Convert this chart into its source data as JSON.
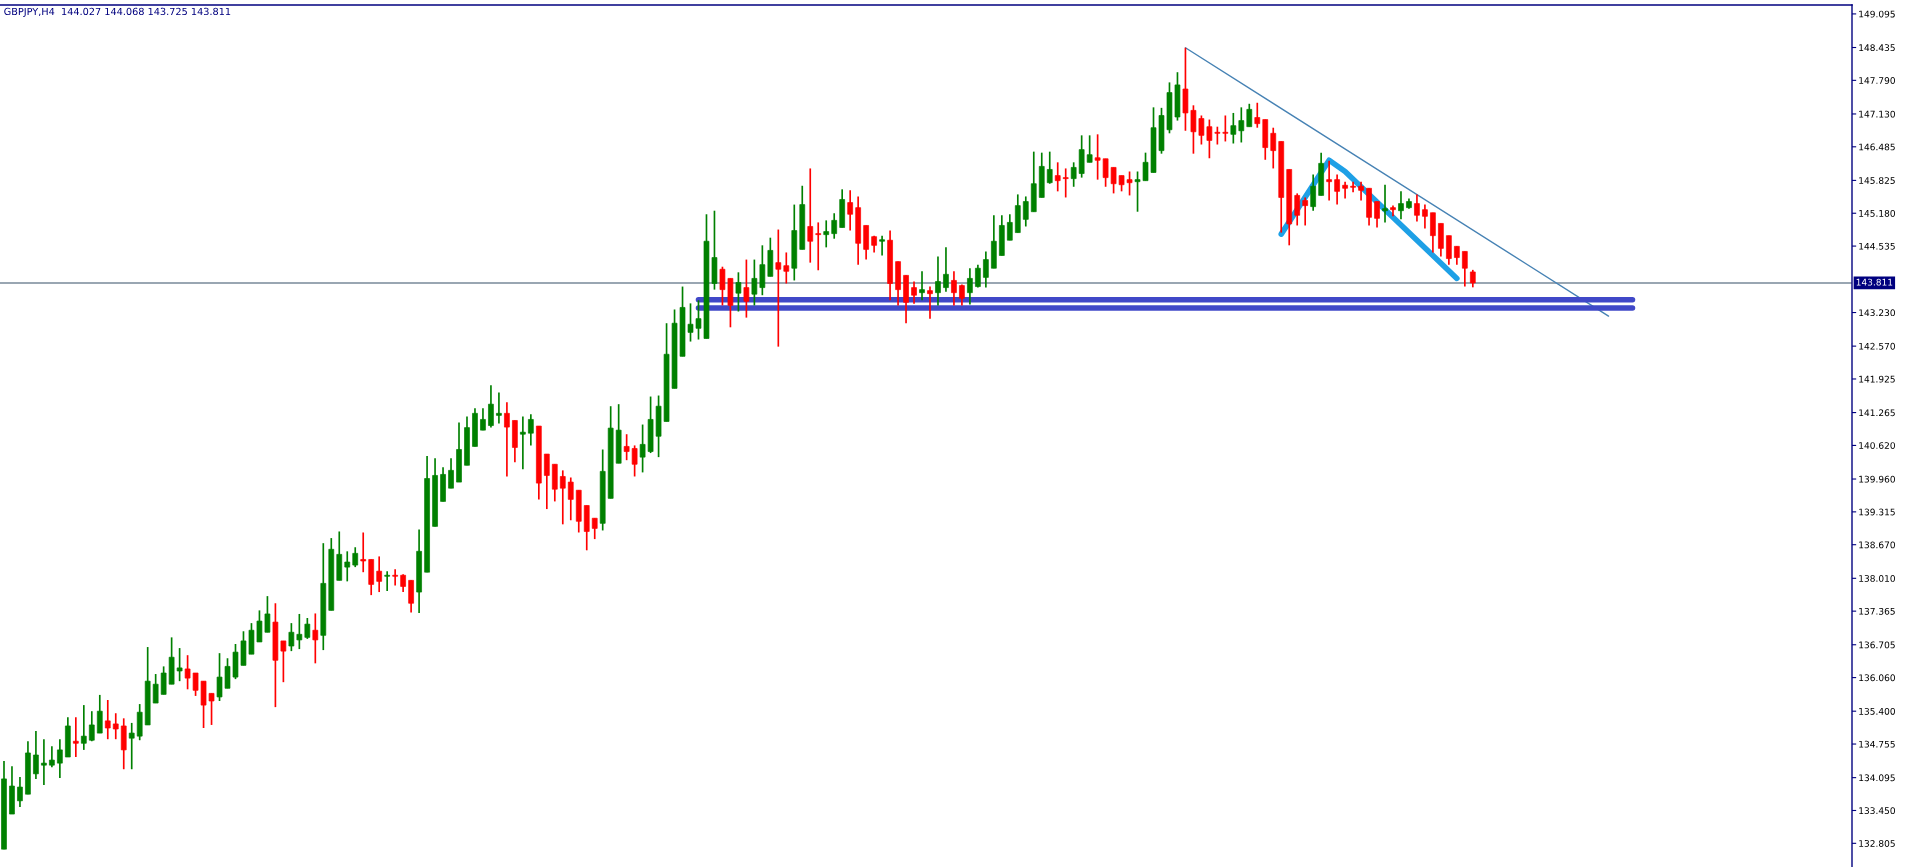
{
  "chart_data": {
    "type": "candlestick",
    "title": "GBPJPY,H4  144.027 144.068 143.725 143.811",
    "categories": [
      null,
      null,
      null,
      null,
      null,
      null,
      null,
      null,
      null,
      null,
      null,
      null,
      null,
      null,
      null,
      null,
      null,
      null,
      null,
      null,
      null,
      null,
      null,
      null,
      null,
      null,
      null,
      null,
      null,
      null,
      null,
      null,
      null,
      null,
      null,
      null,
      null,
      null,
      null,
      null,
      null,
      null,
      null,
      null,
      null,
      null,
      null,
      null,
      null,
      null,
      null,
      null,
      null,
      null,
      null,
      null,
      null,
      null,
      null,
      null,
      null,
      null,
      null,
      null,
      null,
      null,
      null,
      null,
      null,
      null,
      null,
      null,
      null,
      null,
      null,
      null,
      null,
      null,
      null,
      null,
      null,
      null,
      null,
      null,
      null,
      null,
      null,
      null,
      null,
      null,
      null,
      null,
      null,
      null,
      null,
      null,
      null,
      null,
      null,
      null,
      null,
      null,
      null,
      null,
      null,
      null,
      null,
      null,
      null,
      null,
      null,
      null,
      null,
      null,
      null,
      null,
      null,
      null,
      null,
      null,
      null,
      null,
      null,
      null,
      null,
      null,
      null,
      null,
      null,
      null,
      null,
      null,
      null,
      null,
      null,
      null,
      null,
      null,
      null,
      null,
      null,
      null,
      null,
      null,
      null,
      null,
      null,
      null,
      null,
      null,
      null,
      null,
      null,
      null,
      null,
      null,
      null,
      null,
      null,
      null,
      null,
      null,
      null,
      null,
      null,
      null,
      null,
      null,
      null,
      null,
      null,
      null,
      null,
      null,
      null,
      null,
      null,
      null,
      null,
      null,
      null,
      null,
      null,
      null,
      null,
      null,
      null,
      null,
      null,
      null,
      null,
      null,
      null,
      null,
      null,
      null,
      null,
      null,
      null,
      null,
      null,
      null,
      null,
      null,
      null,
      null,
      null,
      null,
      null,
      null,
      null,
      null,
      null,
      null,
      null,
      null,
      null,
      null,
      null,
      null,
      null,
      null,
      null,
      null,
      null,
      null,
      null,
      null,
      null,
      null,
      null,
      null
    ],
    "ohlc": [
      [
        132.69,
        134.42,
        132.69,
        134.07
      ],
      [
        133.38,
        134.32,
        133.38,
        133.93
      ],
      [
        133.64,
        134.11,
        133.52,
        133.91
      ],
      [
        133.77,
        134.81,
        133.77,
        134.58
      ],
      [
        134.17,
        135.01,
        134.07,
        134.54
      ],
      [
        134.34,
        134.85,
        133.95,
        134.38
      ],
      [
        134.34,
        134.71,
        134.3,
        134.44
      ],
      [
        134.38,
        134.85,
        134.09,
        134.64
      ],
      [
        134.5,
        135.28,
        134.5,
        135.11
      ],
      [
        134.81,
        135.28,
        134.5,
        134.77
      ],
      [
        134.77,
        135.52,
        134.64,
        134.91
      ],
      [
        134.83,
        135.4,
        134.81,
        135.13
      ],
      [
        134.97,
        135.72,
        134.97,
        135.4
      ],
      [
        135.21,
        135.62,
        134.85,
        135.07
      ],
      [
        135.15,
        135.36,
        134.85,
        135.05
      ],
      [
        135.11,
        135.26,
        134.26,
        134.64
      ],
      [
        134.87,
        135.17,
        134.26,
        134.97
      ],
      [
        134.91,
        135.54,
        134.83,
        135.38
      ],
      [
        135.13,
        136.66,
        135.13,
        135.99
      ],
      [
        135.56,
        136.13,
        135.56,
        135.93
      ],
      [
        135.73,
        136.28,
        135.73,
        136.15
      ],
      [
        135.93,
        136.85,
        135.93,
        136.46
      ],
      [
        136.19,
        136.64,
        135.99,
        136.25
      ],
      [
        136.23,
        136.5,
        135.83,
        136.05
      ],
      [
        136.15,
        136.15,
        135.7,
        135.81
      ],
      [
        135.99,
        135.99,
        135.07,
        135.52
      ],
      [
        135.75,
        135.75,
        135.13,
        135.6
      ],
      [
        135.68,
        136.54,
        135.6,
        136.07
      ],
      [
        135.85,
        136.44,
        135.85,
        136.28
      ],
      [
        136.07,
        136.72,
        136.03,
        136.56
      ],
      [
        136.3,
        136.97,
        136.3,
        136.78
      ],
      [
        136.52,
        137.13,
        136.52,
        136.99
      ],
      [
        136.76,
        137.38,
        136.76,
        137.17
      ],
      [
        136.95,
        137.66,
        136.95,
        137.31
      ],
      [
        137.15,
        137.52,
        135.48,
        136.4
      ],
      [
        136.78,
        136.78,
        135.97,
        136.58
      ],
      [
        136.68,
        137.13,
        136.58,
        136.95
      ],
      [
        136.8,
        137.31,
        136.62,
        136.91
      ],
      [
        136.85,
        137.23,
        136.82,
        137.11
      ],
      [
        136.99,
        137.32,
        136.34,
        136.8
      ],
      [
        136.89,
        138.7,
        136.6,
        137.91
      ],
      [
        137.38,
        138.8,
        137.38,
        138.58
      ],
      [
        137.97,
        138.93,
        137.97,
        138.48
      ],
      [
        138.23,
        138.54,
        137.95,
        138.33
      ],
      [
        138.27,
        138.62,
        138.23,
        138.5
      ],
      [
        138.38,
        138.91,
        138.13,
        138.35
      ],
      [
        138.38,
        138.38,
        137.68,
        137.89
      ],
      [
        138.15,
        138.44,
        137.74,
        137.95
      ],
      [
        138.05,
        138.15,
        137.76,
        138.07
      ],
      [
        138.07,
        138.19,
        137.87,
        138.05
      ],
      [
        138.07,
        138.09,
        137.74,
        137.85
      ],
      [
        137.97,
        137.97,
        137.34,
        137.52
      ],
      [
        137.74,
        138.97,
        137.33,
        138.54
      ],
      [
        138.13,
        140.41,
        138.13,
        139.97
      ],
      [
        139.03,
        140.37,
        139.03,
        140.03
      ],
      [
        139.52,
        140.19,
        139.52,
        140.05
      ],
      [
        139.78,
        140.37,
        139.78,
        140.13
      ],
      [
        139.9,
        141.07,
        139.9,
        140.54
      ],
      [
        140.23,
        141.19,
        140.23,
        140.97
      ],
      [
        140.6,
        141.35,
        140.6,
        141.25
      ],
      [
        140.92,
        141.35,
        140.92,
        141.13
      ],
      [
        141.01,
        141.8,
        140.97,
        141.43
      ],
      [
        141.21,
        141.66,
        141.05,
        141.25
      ],
      [
        141.25,
        141.47,
        140.01,
        140.98
      ],
      [
        141.11,
        141.11,
        140.29,
        140.58
      ],
      [
        140.84,
        141.19,
        140.15,
        140.88
      ],
      [
        140.86,
        141.23,
        140.62,
        141.13
      ],
      [
        141.0,
        141.0,
        139.56,
        139.88
      ],
      [
        140.45,
        140.45,
        139.37,
        140.03
      ],
      [
        140.25,
        140.25,
        139.52,
        139.76
      ],
      [
        140.01,
        140.13,
        139.07,
        139.78
      ],
      [
        139.9,
        139.99,
        139.15,
        139.56
      ],
      [
        139.74,
        139.74,
        138.91,
        139.13
      ],
      [
        139.44,
        139.44,
        138.56,
        138.93
      ],
      [
        139.19,
        139.19,
        138.78,
        138.99
      ],
      [
        139.09,
        140.54,
        138.95,
        140.11
      ],
      [
        139.58,
        141.39,
        139.58,
        140.96
      ],
      [
        140.27,
        141.43,
        140.27,
        140.92
      ],
      [
        140.6,
        140.84,
        140.33,
        140.5
      ],
      [
        140.56,
        140.62,
        140.01,
        140.25
      ],
      [
        140.39,
        141.03,
        140.09,
        140.64
      ],
      [
        140.5,
        141.58,
        140.47,
        141.13
      ],
      [
        140.8,
        141.6,
        140.39,
        141.39
      ],
      [
        141.09,
        143.02,
        141.09,
        142.41
      ],
      [
        141.74,
        143.29,
        141.74,
        143.02
      ],
      [
        142.37,
        143.74,
        142.37,
        143.33
      ],
      [
        142.84,
        143.41,
        142.66,
        143.0
      ],
      [
        142.92,
        143.47,
        142.7,
        143.11
      ],
      [
        142.72,
        145.16,
        142.72,
        144.63
      ],
      [
        143.8,
        145.23,
        143.68,
        144.31
      ],
      [
        144.08,
        144.13,
        143.37,
        143.68
      ],
      [
        143.9,
        143.9,
        142.94,
        143.37
      ],
      [
        143.61,
        144.02,
        143.25,
        143.82
      ],
      [
        143.72,
        144.27,
        143.13,
        143.45
      ],
      [
        143.59,
        144.27,
        143.37,
        143.9
      ],
      [
        143.72,
        144.55,
        143.57,
        144.17
      ],
      [
        143.94,
        144.7,
        143.94,
        144.45
      ],
      [
        144.21,
        144.86,
        142.56,
        144.08
      ],
      [
        144.15,
        144.41,
        143.8,
        144.04
      ],
      [
        144.1,
        145.35,
        143.86,
        144.84
      ],
      [
        144.47,
        145.72,
        144.47,
        145.35
      ],
      [
        144.92,
        146.06,
        144.21,
        144.63
      ],
      [
        144.78,
        145.0,
        144.06,
        144.76
      ],
      [
        144.76,
        145.04,
        144.51,
        144.82
      ],
      [
        144.78,
        145.18,
        144.68,
        145.04
      ],
      [
        144.9,
        145.65,
        144.9,
        145.45
      ],
      [
        145.39,
        145.63,
        144.84,
        145.16
      ],
      [
        145.29,
        145.51,
        144.17,
        144.59
      ],
      [
        144.94,
        144.94,
        144.27,
        144.47
      ],
      [
        144.72,
        144.74,
        144.41,
        144.55
      ],
      [
        144.63,
        144.74,
        144.35,
        144.66
      ],
      [
        144.65,
        144.84,
        143.47,
        143.8
      ],
      [
        144.23,
        144.23,
        143.37,
        143.68
      ],
      [
        143.96,
        143.96,
        143.02,
        143.43
      ],
      [
        143.72,
        143.84,
        143.4,
        143.57
      ],
      [
        143.62,
        144.04,
        143.47,
        143.68
      ],
      [
        143.66,
        143.74,
        143.11,
        143.6
      ],
      [
        143.62,
        144.33,
        143.37,
        143.84
      ],
      [
        143.72,
        144.51,
        143.64,
        143.98
      ],
      [
        143.86,
        144.04,
        143.37,
        143.62
      ],
      [
        143.76,
        143.78,
        143.37,
        143.51
      ],
      [
        143.62,
        144.1,
        143.39,
        143.9
      ],
      [
        143.74,
        144.17,
        143.72,
        144.1
      ],
      [
        143.92,
        144.43,
        143.72,
        144.27
      ],
      [
        144.1,
        145.14,
        144.1,
        144.63
      ],
      [
        144.35,
        145.14,
        144.35,
        144.94
      ],
      [
        144.65,
        145.16,
        144.65,
        145.0
      ],
      [
        144.8,
        145.55,
        144.8,
        145.33
      ],
      [
        145.06,
        145.51,
        144.92,
        145.41
      ],
      [
        145.21,
        146.39,
        145.21,
        145.76
      ],
      [
        145.49,
        146.37,
        145.49,
        146.1
      ],
      [
        145.78,
        146.39,
        145.76,
        146.04
      ],
      [
        145.92,
        146.18,
        145.61,
        145.82
      ],
      [
        145.88,
        146.06,
        145.49,
        145.86
      ],
      [
        145.86,
        146.18,
        145.7,
        146.08
      ],
      [
        145.96,
        146.71,
        145.88,
        146.43
      ],
      [
        146.18,
        146.71,
        146.18,
        146.33
      ],
      [
        146.27,
        146.73,
        145.84,
        146.22
      ],
      [
        146.25,
        146.25,
        145.7,
        145.88
      ],
      [
        146.08,
        146.08,
        145.57,
        145.76
      ],
      [
        145.92,
        145.92,
        145.61,
        145.74
      ],
      [
        145.84,
        146.0,
        145.53,
        145.78
      ],
      [
        145.8,
        146.0,
        145.21,
        145.84
      ],
      [
        145.82,
        146.37,
        145.82,
        146.18
      ],
      [
        145.98,
        147.26,
        145.98,
        146.86
      ],
      [
        146.41,
        147.25,
        146.35,
        147.1
      ],
      [
        146.82,
        147.75,
        146.75,
        147.55
      ],
      [
        147.07,
        147.95,
        147.0,
        147.7
      ],
      [
        147.62,
        148.43,
        146.8,
        147.15
      ],
      [
        147.2,
        147.3,
        146.35,
        146.78
      ],
      [
        147.04,
        147.1,
        146.53,
        146.71
      ],
      [
        146.88,
        147.02,
        146.26,
        146.61
      ],
      [
        146.77,
        146.88,
        146.53,
        146.75
      ],
      [
        146.77,
        147.1,
        146.59,
        146.75
      ],
      [
        146.73,
        147.15,
        146.55,
        146.9
      ],
      [
        146.8,
        147.26,
        146.57,
        147.0
      ],
      [
        146.88,
        147.33,
        146.88,
        147.22
      ],
      [
        147.06,
        147.35,
        146.86,
        146.94
      ],
      [
        147.02,
        147.02,
        146.23,
        146.47
      ],
      [
        146.75,
        146.86,
        146.06,
        146.41
      ],
      [
        146.59,
        146.59,
        144.8,
        145.49
      ],
      [
        146.04,
        146.04,
        144.55,
        144.97
      ],
      [
        145.53,
        145.57,
        144.94,
        145.14
      ],
      [
        145.43,
        145.49,
        144.94,
        145.33
      ],
      [
        145.31,
        145.94,
        145.23,
        145.71
      ],
      [
        145.53,
        146.37,
        145.53,
        146.16
      ],
      [
        145.84,
        146.21,
        145.43,
        145.8
      ],
      [
        145.84,
        145.94,
        145.35,
        145.61
      ],
      [
        145.73,
        145.8,
        145.47,
        145.67
      ],
      [
        145.71,
        145.8,
        145.59,
        145.69
      ],
      [
        145.71,
        145.8,
        145.43,
        145.63
      ],
      [
        145.67,
        145.67,
        144.94,
        145.1
      ],
      [
        145.41,
        145.41,
        144.9,
        145.08
      ],
      [
        145.23,
        145.74,
        145.0,
        145.27
      ],
      [
        145.29,
        145.33,
        145.12,
        145.25
      ],
      [
        145.23,
        145.61,
        145.06,
        145.37
      ],
      [
        145.29,
        145.47,
        145.27,
        145.41
      ],
      [
        145.37,
        145.55,
        145.02,
        145.14
      ],
      [
        145.25,
        145.35,
        144.88,
        145.12
      ],
      [
        145.19,
        145.19,
        144.41,
        144.74
      ],
      [
        144.98,
        144.98,
        144.33,
        144.49
      ],
      [
        144.74,
        144.74,
        144.17,
        144.29
      ],
      [
        144.53,
        144.53,
        144.17,
        144.31
      ],
      [
        144.43,
        144.43,
        143.74,
        144.1
      ],
      [
        144.027,
        144.068,
        143.725,
        143.811
      ],
      null,
      null,
      null,
      null,
      null,
      null,
      null,
      null,
      null,
      null,
      null,
      null,
      null,
      null,
      null,
      null,
      null,
      null,
      null,
      null,
      null,
      null,
      null,
      null,
      null,
      null,
      null,
      null,
      null,
      null,
      null,
      null,
      null,
      null,
      null,
      null,
      null,
      null,
      null,
      null,
      null,
      null,
      null,
      null,
      null,
      null,
      null
    ],
    "colors": [
      "#008000",
      "#008000",
      "#008000",
      "#008000",
      "#008000",
      "#008000",
      "#008000",
      "#008000",
      "#008000",
      "#ff0000",
      "#008000",
      "#008000",
      "#008000",
      "#ff0000",
      "#ff0000",
      "#ff0000",
      "#008000",
      "#008000",
      "#008000",
      "#008000",
      "#008000",
      "#008000",
      "#008000",
      "#ff0000",
      "#ff0000",
      "#ff0000",
      "#ff0000",
      "#008000",
      "#008000",
      "#008000",
      "#008000",
      "#008000",
      "#008000",
      "#008000",
      "#ff0000",
      "#ff0000",
      "#008000",
      "#008000",
      "#008000",
      "#ff0000",
      "#008000",
      "#008000",
      "#008000",
      "#008000",
      "#008000",
      "#ff0000",
      "#ff0000",
      "#ff0000",
      "#008000",
      "#ff0000",
      "#ff0000",
      "#ff0000",
      "#008000",
      "#008000",
      "#008000",
      "#008000",
      "#008000",
      "#008000",
      "#008000",
      "#008000",
      "#008000",
      "#008000",
      "#008000",
      "#ff0000",
      "#ff0000",
      "#008000",
      "#008000",
      "#ff0000",
      "#ff0000",
      "#ff0000",
      "#ff0000",
      "#ff0000",
      "#ff0000",
      "#ff0000",
      "#ff0000",
      "#008000",
      "#008000",
      "#008000",
      "#ff0000",
      "#ff0000",
      "#008000",
      "#008000",
      "#008000",
      "#008000",
      "#008000",
      "#008000",
      "#008000",
      "#008000",
      "#008000",
      "#008000",
      "#ff0000",
      "#ff0000",
      "#008000",
      "#ff0000",
      "#008000",
      "#008000",
      "#008000",
      "#ff0000",
      "#ff0000",
      "#008000",
      "#008000",
      "#ff0000",
      "#ff0000",
      "#008000",
      "#008000",
      "#008000",
      "#ff0000",
      "#ff0000",
      "#ff0000",
      "#ff0000",
      "#008000",
      "#ff0000",
      "#ff0000",
      "#ff0000",
      "#ff0000",
      "#008000",
      "#ff0000",
      "#008000",
      "#008000",
      "#ff0000",
      "#ff0000",
      "#008000",
      "#008000",
      "#008000",
      "#008000",
      "#008000",
      "#008000",
      "#008000",
      "#008000",
      "#008000",
      "#008000",
      "#008000",
      "#ff0000",
      "#ff0000",
      "#008000",
      "#008000",
      "#008000",
      "#ff0000",
      "#ff0000",
      "#ff0000",
      "#ff0000",
      "#ff0000",
      "#008000",
      "#008000",
      "#008000",
      "#008000",
      "#008000",
      "#008000",
      "#ff0000",
      "#ff0000",
      "#ff0000",
      "#ff0000",
      "#ff0000",
      "#ff0000",
      "#008000",
      "#008000",
      "#008000",
      "#ff0000",
      "#ff0000",
      "#ff0000",
      "#ff0000",
      "#ff0000",
      "#ff0000",
      "#ff0000",
      "#008000",
      "#008000",
      "#ff0000",
      "#ff0000",
      "#ff0000",
      "#ff0000",
      "#ff0000",
      "#ff0000",
      "#ff0000",
      "#008000",
      "#ff0000",
      "#008000",
      "#008000",
      "#ff0000",
      "#ff0000",
      "#ff0000",
      "#ff0000",
      "#ff0000",
      "#ff0000",
      "#ff0000",
      "#ff0000",
      null,
      null,
      null,
      null,
      null,
      null,
      null,
      null,
      null,
      null,
      null,
      null,
      null,
      null,
      null,
      null,
      null,
      null,
      null,
      null,
      null,
      null,
      null,
      null,
      null,
      null,
      null,
      null,
      null,
      null,
      null,
      null,
      null,
      null,
      null,
      null,
      null,
      null,
      null,
      null,
      null,
      null,
      null,
      null,
      null,
      null,
      null
    ],
    "series": [
      {
        "type": "line",
        "color": "#4682b4",
        "values": [
          null,
          null,
          null,
          null,
          null,
          null,
          null,
          null,
          null,
          null,
          null,
          null,
          null,
          null,
          null,
          null,
          null,
          null,
          null,
          null,
          null,
          null,
          null,
          null,
          null,
          null,
          null,
          null,
          null,
          null,
          null,
          null,
          null,
          null,
          null,
          null,
          null,
          null,
          null,
          null,
          null,
          null,
          null,
          null,
          null,
          null,
          null,
          null,
          null,
          null,
          null,
          null,
          null,
          null,
          null,
          null,
          null,
          null,
          null,
          null,
          null,
          null,
          null,
          null,
          null,
          null,
          null,
          null,
          null,
          null,
          null,
          null,
          null,
          null,
          null,
          null,
          null,
          null,
          null,
          null,
          null,
          null,
          null,
          null,
          null,
          null,
          null,
          null,
          null,
          null,
          null,
          null,
          null,
          null,
          null,
          null,
          null,
          null,
          null,
          null,
          null,
          null,
          null,
          null,
          null,
          null,
          null,
          null,
          null,
          null,
          null,
          null,
          null,
          null,
          null,
          null,
          null,
          null,
          null,
          null,
          null,
          null,
          null,
          null,
          null,
          null,
          null,
          null,
          null,
          null,
          null,
          null,
          null,
          null,
          null,
          null,
          null,
          null,
          null,
          null,
          null,
          null,
          null,
          null,
          null,
          null,
          null,
          null,
          148.43,
          null,
          null,
          null,
          null,
          null,
          null,
          null,
          null,
          null,
          null,
          null,
          null,
          null,
          null,
          null,
          null,
          null,
          null,
          null,
          null,
          null,
          null,
          null,
          null,
          null,
          null,
          null,
          null,
          null,
          null,
          null,
          null,
          null,
          null,
          null,
          null,
          null,
          null,
          null,
          null,
          null,
          null,
          null,
          null,
          null,
          null,
          null,
          null,
          null,
          null,
          null,
          null,
          143.16,
          null,
          null,
          null,
          null,
          null,
          null,
          null,
          null,
          null,
          null,
          null,
          null,
          null,
          null,
          null,
          null,
          null,
          null,
          null,
          null,
          null,
          null,
          null,
          null,
          null,
          null,
          null,
          null,
          null,
          null
        ]
      },
      {
        "type": "line",
        "color": "#1ea0e6",
        "values": [
          null,
          null,
          null,
          null,
          null,
          null,
          null,
          null,
          null,
          null,
          null,
          null,
          null,
          null,
          null,
          null,
          null,
          null,
          null,
          null,
          null,
          null,
          null,
          null,
          null,
          null,
          null,
          null,
          null,
          null,
          null,
          null,
          null,
          null,
          null,
          null,
          null,
          null,
          null,
          null,
          null,
          null,
          null,
          null,
          null,
          null,
          null,
          null,
          null,
          null,
          null,
          null,
          null,
          null,
          null,
          null,
          null,
          null,
          null,
          null,
          null,
          null,
          null,
          null,
          null,
          null,
          null,
          null,
          null,
          null,
          null,
          null,
          null,
          null,
          null,
          null,
          null,
          null,
          null,
          null,
          null,
          null,
          null,
          null,
          null,
          null,
          null,
          null,
          null,
          null,
          null,
          null,
          null,
          null,
          null,
          null,
          null,
          null,
          null,
          null,
          null,
          null,
          null,
          null,
          null,
          null,
          null,
          null,
          null,
          null,
          null,
          null,
          null,
          null,
          null,
          null,
          null,
          null,
          null,
          null,
          null,
          null,
          null,
          null,
          null,
          null,
          null,
          null,
          null,
          null,
          null,
          null,
          null,
          null,
          null,
          null,
          null,
          null,
          null,
          null,
          null,
          null,
          null,
          null,
          null,
          null,
          null,
          null,
          null,
          null,
          null,
          null,
          null,
          null,
          null,
          null,
          null,
          null,
          null,
          null,
          144.77,
          null,
          null,
          null,
          null,
          null,
          146.22,
          null,
          146.0,
          null,
          null,
          null,
          null,
          null,
          null,
          null,
          null,
          null,
          null,
          null,
          null,
          null,
          143.9,
          null,
          null,
          null,
          null,
          null,
          null,
          null,
          null,
          null,
          null,
          null,
          null,
          null,
          null,
          null,
          null,
          null,
          null,
          null,
          null,
          null,
          null,
          null,
          null,
          null,
          null,
          null,
          null,
          null,
          null,
          null,
          null,
          null,
          null,
          null,
          null,
          null,
          null,
          null,
          null,
          null,
          null,
          null,
          null,
          null,
          null,
          null,
          null,
          null
        ]
      },
      {
        "type": "line",
        "color": "#4048c8",
        "values": [
          null,
          null,
          null,
          null,
          null,
          null,
          null,
          null,
          null,
          null,
          null,
          null,
          null,
          null,
          null,
          null,
          null,
          null,
          null,
          null,
          null,
          null,
          null,
          null,
          null,
          null,
          null,
          null,
          null,
          null,
          null,
          null,
          null,
          null,
          null,
          null,
          null,
          null,
          null,
          null,
          null,
          null,
          null,
          null,
          null,
          null,
          null,
          null,
          null,
          null,
          null,
          null,
          null,
          null,
          null,
          null,
          null,
          null,
          null,
          null,
          null,
          null,
          null,
          null,
          null,
          null,
          null,
          null,
          null,
          null,
          null,
          null,
          null,
          null,
          null,
          null,
          null,
          null,
          null,
          null,
          null,
          null,
          null,
          null,
          null,
          null,
          null,
          143.48,
          null,
          null,
          null,
          null,
          null,
          null,
          null,
          null,
          null,
          null,
          null,
          null,
          null,
          null,
          null,
          null,
          null,
          null,
          null,
          null,
          null,
          null,
          null,
          null,
          null,
          null,
          null,
          null,
          null,
          null,
          null,
          null,
          null,
          null,
          null,
          null,
          null,
          null,
          null,
          null,
          null,
          null,
          null,
          null,
          null,
          null,
          null,
          null,
          null,
          null,
          null,
          null,
          null,
          null,
          null,
          null,
          null,
          null,
          null,
          null,
          null,
          null,
          null,
          null,
          null,
          null,
          null,
          null,
          null,
          null,
          null,
          null,
          null,
          null,
          null,
          null,
          null,
          null,
          null,
          null,
          null,
          null,
          null,
          null,
          null,
          null,
          null,
          null,
          null,
          null,
          null,
          null,
          null,
          null,
          null,
          null,
          null,
          null,
          null,
          null,
          null,
          null,
          null,
          null,
          null,
          null,
          null,
          null,
          null,
          null,
          null,
          null,
          null,
          null,
          null,
          null,
          143.48,
          null,
          null,
          null,
          null,
          null,
          null,
          null,
          null,
          null,
          null,
          null,
          null,
          null,
          null,
          null,
          null,
          null,
          null,
          null,
          null,
          null,
          null,
          null,
          null,
          null,
          null,
          null
        ]
      },
      {
        "type": "line",
        "color": "#4048c8",
        "values": [
          null,
          null,
          null,
          null,
          null,
          null,
          null,
          null,
          null,
          null,
          null,
          null,
          null,
          null,
          null,
          null,
          null,
          null,
          null,
          null,
          null,
          null,
          null,
          null,
          null,
          null,
          null,
          null,
          null,
          null,
          null,
          null,
          null,
          null,
          null,
          null,
          null,
          null,
          null,
          null,
          null,
          null,
          null,
          null,
          null,
          null,
          null,
          null,
          null,
          null,
          null,
          null,
          null,
          null,
          null,
          null,
          null,
          null,
          null,
          null,
          null,
          null,
          null,
          null,
          null,
          null,
          null,
          null,
          null,
          null,
          null,
          null,
          null,
          null,
          null,
          null,
          null,
          null,
          null,
          null,
          null,
          null,
          null,
          null,
          null,
          null,
          null,
          143.32,
          null,
          null,
          null,
          null,
          null,
          null,
          null,
          null,
          null,
          null,
          null,
          null,
          null,
          null,
          null,
          null,
          null,
          null,
          null,
          null,
          null,
          null,
          null,
          null,
          null,
          null,
          null,
          null,
          null,
          null,
          null,
          null,
          null,
          null,
          null,
          null,
          null,
          null,
          null,
          null,
          null,
          null,
          null,
          null,
          null,
          null,
          null,
          null,
          null,
          null,
          null,
          null,
          null,
          null,
          null,
          null,
          null,
          null,
          null,
          null,
          null,
          null,
          null,
          null,
          null,
          null,
          null,
          null,
          null,
          null,
          null,
          null,
          null,
          null,
          null,
          null,
          null,
          null,
          null,
          null,
          null,
          null,
          null,
          null,
          null,
          null,
          null,
          null,
          null,
          null,
          null,
          null,
          null,
          null,
          null,
          null,
          null,
          null,
          null,
          null,
          null,
          null,
          null,
          null,
          null,
          null,
          null,
          null,
          null,
          null,
          null,
          null,
          null,
          null,
          null,
          null,
          143.32,
          null,
          null,
          null,
          null,
          null,
          null,
          null,
          null,
          null,
          null,
          null,
          null,
          null,
          null,
          null,
          null,
          null,
          null,
          null,
          null,
          null,
          null,
          null,
          null,
          null,
          null,
          null
        ]
      }
    ],
    "ref_lines": [
      {
        "axis": "y",
        "value": 143.811,
        "label": "143.811",
        "color": "#778899"
      }
    ],
    "ylim": [
      132.34,
      149.27
    ],
    "yticks": [
      {
        "value": 149.095,
        "label": "149.095"
      },
      {
        "value": 148.435,
        "label": "148.435"
      },
      {
        "value": 147.79,
        "label": "147.790"
      },
      {
        "value": 147.13,
        "label": "147.130"
      },
      {
        "value": 146.485,
        "label": "146.485"
      },
      {
        "value": 145.825,
        "label": "145.825"
      },
      {
        "value": 145.18,
        "label": "145.180"
      },
      {
        "value": 144.535,
        "label": "144.535"
      },
      {
        "value": 143.23,
        "label": "143.230"
      },
      {
        "value": 142.57,
        "label": "142.570"
      },
      {
        "value": 141.925,
        "label": "141.925"
      },
      {
        "value": 141.265,
        "label": "141.265"
      },
      {
        "value": 140.62,
        "label": "140.620"
      },
      {
        "value": 139.96,
        "label": "139.960"
      },
      {
        "value": 139.315,
        "label": "139.315"
      },
      {
        "value": 138.67,
        "label": "138.670"
      },
      {
        "value": 138.01,
        "label": "138.010"
      },
      {
        "value": 137.365,
        "label": "137.365"
      },
      {
        "value": 136.705,
        "label": "136.705"
      },
      {
        "value": 136.06,
        "label": "136.060"
      },
      {
        "value": 135.4,
        "label": "135.400"
      },
      {
        "value": 134.755,
        "label": "134.755"
      },
      {
        "value": 134.095,
        "label": "134.095"
      },
      {
        "value": 133.45,
        "label": "133.450"
      },
      {
        "value": 132.805,
        "label": "132.805"
      }
    ],
    "tick_labels": "y",
    "grid": false,
    "legend": false
  }
}
